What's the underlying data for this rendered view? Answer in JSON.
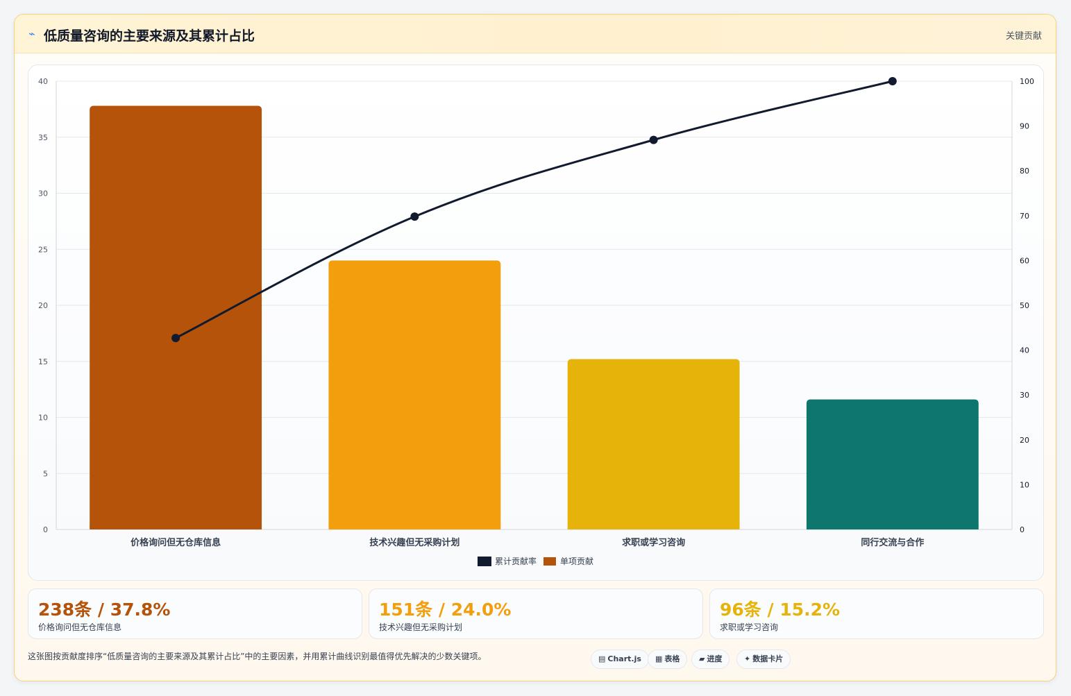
{
  "header": {
    "title": "低质量咨询的主要来源及其累计占比",
    "badge": "关键贡献"
  },
  "chart_data": {
    "type": "bar",
    "categories": [
      "价格询问但无仓库信息",
      "技术兴趣但无采购计划",
      "求职或学习咨询",
      "同行交流与合作"
    ],
    "series": [
      {
        "name": "单项贡献",
        "type": "bar",
        "axis": "left",
        "values": [
          37.8,
          24.0,
          15.2,
          11.6
        ]
      },
      {
        "name": "累计贡献率",
        "type": "line",
        "axis": "right",
        "values": [
          42.7,
          69.8,
          86.9,
          100
        ]
      }
    ],
    "bar_colors": [
      "#b45309",
      "#f29e0d",
      "#e6b30b",
      "#0f766e"
    ],
    "line_color": "#111a2e",
    "left_ylim": [
      0,
      40
    ],
    "left_ticks": [
      0,
      5,
      10,
      15,
      20,
      25,
      30,
      35,
      40
    ],
    "right_ylim": [
      0,
      100
    ],
    "right_ticks": [
      0,
      10,
      20,
      30,
      40,
      50,
      60,
      70,
      80,
      90,
      100
    ],
    "legend": [
      "累计贡献率",
      "单项贡献"
    ],
    "legend_position": "bottom",
    "grid": true
  },
  "kpis": [
    {
      "value": "238条 / 37.8%",
      "label": "价格询问但无仓库信息",
      "color": "#b45309"
    },
    {
      "value": "151条 / 24.0%",
      "label": "技术兴趣但无采购计划",
      "color": "#f29e0d"
    },
    {
      "value": "96条 / 15.2%",
      "label": "求职或学习咨询",
      "color": "#e6b30b"
    }
  ],
  "footnote": "这张图按贡献度排序“低质量咨询的主要来源及其累计占比”中的主要因素，并用累计曲线识别最值得优先解决的少数关键项。",
  "chips": [
    {
      "icon": "▤",
      "label": "Chart.js"
    },
    {
      "icon": "▦",
      "label": "表格"
    },
    {
      "icon": "▰",
      "label": "进度"
    },
    {
      "icon": "✦",
      "label": "数据卡片"
    }
  ]
}
